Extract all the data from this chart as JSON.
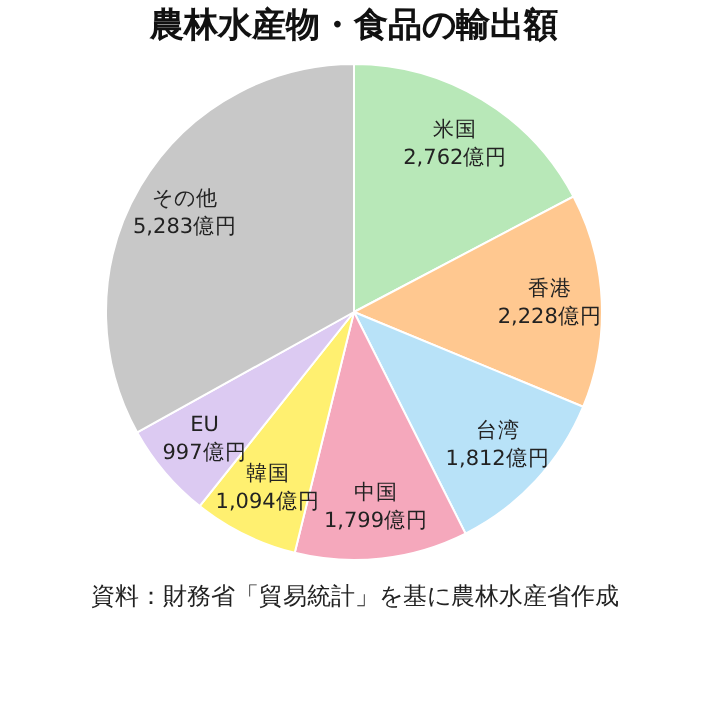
{
  "chart_data": {
    "type": "pie",
    "title": "農林水産物・食品の輸出額",
    "categories": [
      "米国",
      "香港",
      "台湾",
      "中国",
      "韓国",
      "EU",
      "その他"
    ],
    "values": [
      2762,
      2228,
      1812,
      1799,
      1094,
      997,
      5283
    ],
    "value_labels": [
      "2,762億円",
      "2,228億円",
      "1,812億円",
      "1,799億円",
      "1,094億円",
      "997億円",
      "5,283億円"
    ],
    "colors": [
      "#b8e8b8",
      "#ffc890",
      "#b8e2f8",
      "#f5a8bc",
      "#fff070",
      "#dccaf2",
      "#c8c8c8"
    ],
    "annotations": [
      "資料：財務省「貿易統計」を基に農林水産省作成"
    ]
  }
}
